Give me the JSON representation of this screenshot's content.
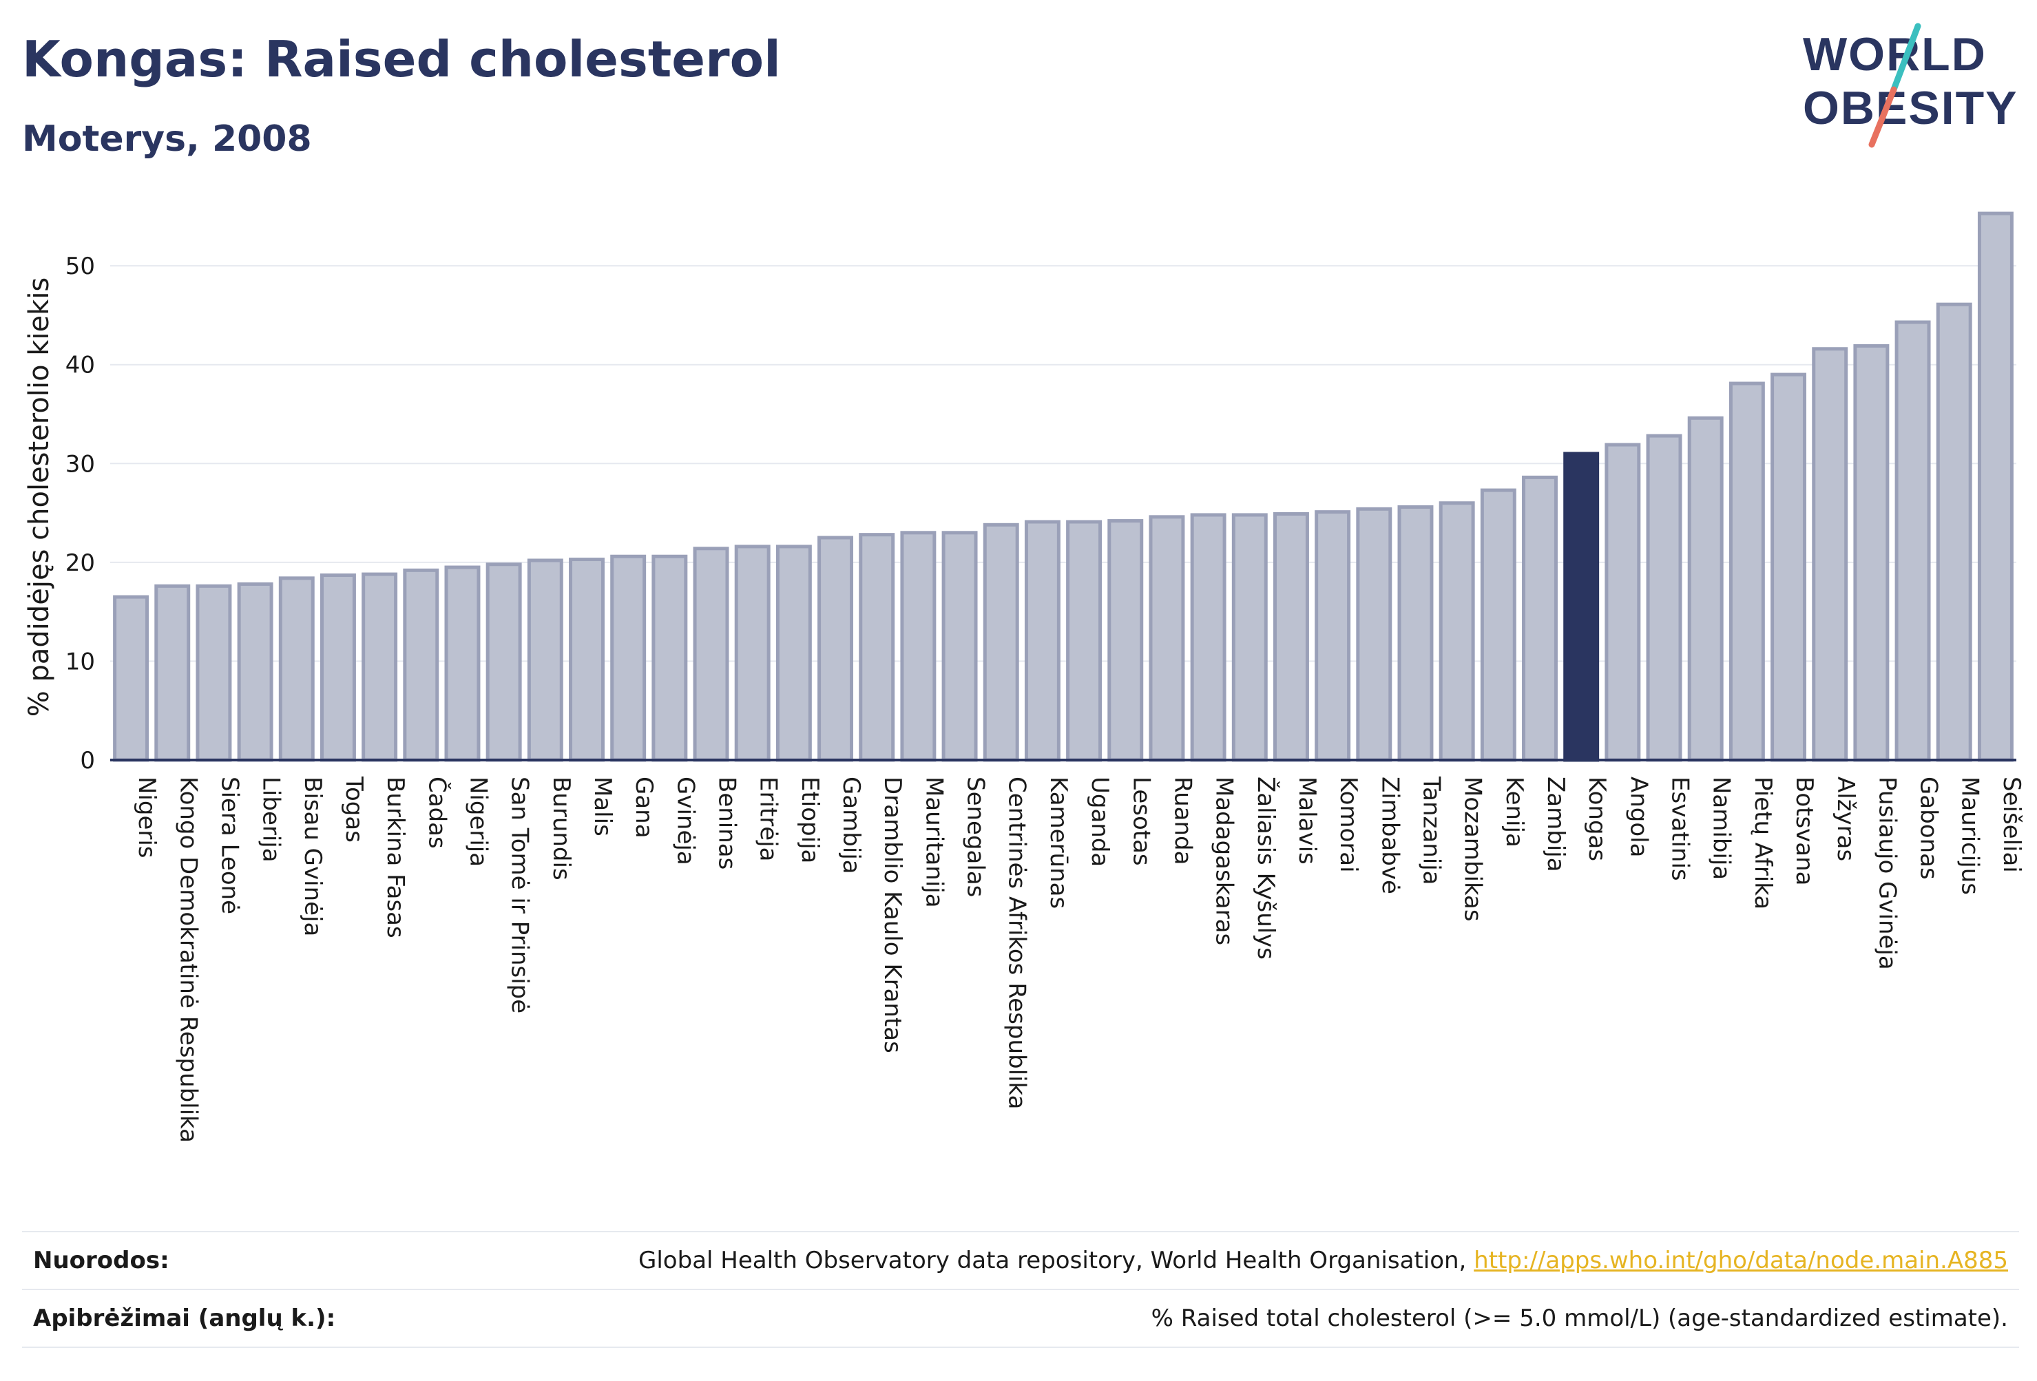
{
  "header": {
    "title": "Kongas: Raised cholesterol",
    "subtitle": "Moterys, 2008"
  },
  "logo": {
    "line1": "WORLD",
    "line2": "OBESITY",
    "colors": {
      "text": "#2a3560",
      "slash_teal": "#3bbfbf",
      "slash_coral": "#e8715f"
    }
  },
  "chart_data": {
    "type": "bar",
    "title": "Kongas: Raised cholesterol",
    "subtitle": "Moterys, 2008",
    "ylabel": "% padidėjęs cholesterolio kiekis",
    "xlabel": "",
    "ylim": [
      0,
      56
    ],
    "yticks": [
      0,
      10,
      20,
      30,
      40,
      50
    ],
    "grid": true,
    "highlight": "Kongas",
    "colors": {
      "bar": "#bcc1d0",
      "bar_border": "#9aa0b8",
      "highlight": "#2a3560"
    },
    "categories": [
      "Nigeris",
      "Kongo Demokratinė Respublika",
      "Siera Leonė",
      "Liberija",
      "Bisau Gvinėja",
      "Togas",
      "Burkina Fasas",
      "Čadas",
      "Nigerija",
      "San Tomė ir Prinsipė",
      "Burundis",
      "Malis",
      "Gana",
      "Gvinėja",
      "Beninas",
      "Eritrėja",
      "Etiopija",
      "Gambija",
      "Dramblio Kaulo Krantas",
      "Mauritanija",
      "Senegalas",
      "Centrinės Afrikos Respublika",
      "Kamerūnas",
      "Uganda",
      "Lesotas",
      "Ruanda",
      "Madagaskaras",
      "Žaliasis Kyšulys",
      "Malavis",
      "Komorai",
      "Zimbabvė",
      "Tanzanija",
      "Mozambikas",
      "Kenija",
      "Zambija",
      "Kongas",
      "Angola",
      "Esvatinis",
      "Namibija",
      "Pietų Afrika",
      "Botsvana",
      "Alžyras",
      "Pusiaujo Gvinėja",
      "Gabonas",
      "Mauricijus",
      "Seišeliai"
    ],
    "values": [
      16.5,
      17.6,
      17.6,
      17.8,
      18.4,
      18.7,
      18.8,
      19.2,
      19.5,
      19.8,
      20.2,
      20.3,
      20.6,
      20.6,
      21.4,
      21.6,
      21.6,
      22.5,
      22.8,
      23.0,
      23.0,
      23.8,
      24.1,
      24.1,
      24.2,
      24.6,
      24.8,
      24.8,
      24.9,
      25.1,
      25.4,
      25.6,
      26.0,
      27.3,
      28.6,
      31.0,
      31.9,
      32.8,
      34.6,
      38.1,
      39.0,
      41.6,
      41.9,
      44.3,
      46.1,
      55.3
    ]
  },
  "footer": {
    "sources_label": "Nuorodos:",
    "sources_text": "Global Health Observatory data repository, World Health Organisation,",
    "sources_link": "http://apps.who.int/gho/data/node.main.A885",
    "definitions_label": "Apibrėžimai (anglų k.):",
    "definitions_text": "% Raised total cholesterol (>= 5.0 mmol/L) (age-standardized estimate)."
  }
}
